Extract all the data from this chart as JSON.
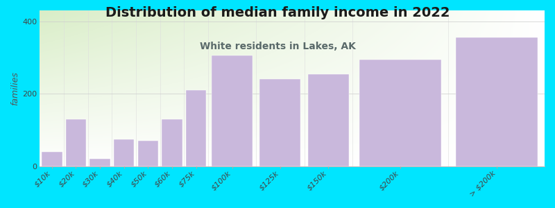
{
  "title": "Distribution of median family income in 2022",
  "subtitle": "White residents in Lakes, AK",
  "ylabel": "families",
  "categories": [
    "$10k",
    "$20k",
    "$30k",
    "$40k",
    "$50k",
    "$60k",
    "$75k",
    "$100k",
    "$125k",
    "$150k",
    "$200k",
    "> $200k"
  ],
  "values": [
    40,
    130,
    20,
    75,
    70,
    130,
    210,
    305,
    240,
    255,
    295,
    355
  ],
  "widths": [
    1,
    1,
    1,
    1,
    1,
    1,
    1,
    2,
    2,
    2,
    4,
    4
  ],
  "bar_color": "#c9b8dc",
  "background_outer": "#00e5ff",
  "plot_bg_left": "#d8eec8",
  "plot_bg_right": "#ffffff",
  "title_fontsize": 14,
  "subtitle_fontsize": 10,
  "subtitle_color": "#5a6a6a",
  "ylabel_fontsize": 9,
  "tick_fontsize": 8,
  "ylim": [
    0,
    430
  ],
  "yticks": [
    0,
    200,
    400
  ]
}
